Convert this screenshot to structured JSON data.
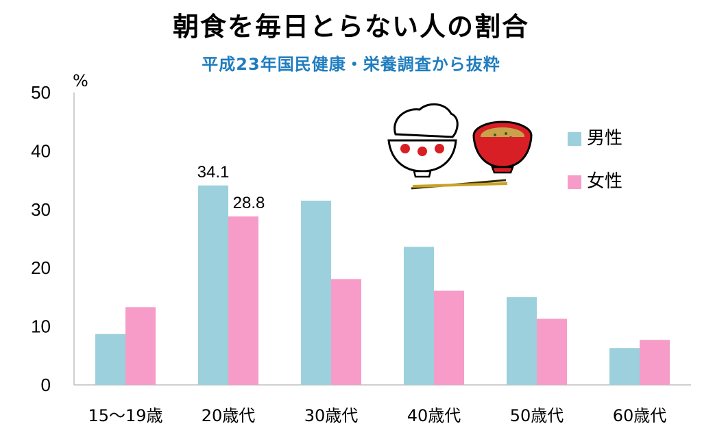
{
  "colors": {
    "male": "#9BD0DC",
    "female": "#F79CC8",
    "title": "#000000",
    "subtitle": "#1F7DBF",
    "axis": "#BFBFBF"
  },
  "chart_data": {
    "type": "bar",
    "title": "朝食を毎日とらない人の割合",
    "subtitle": "平成23年国民健康・栄養調査から抜粋",
    "ylabel": "%",
    "ylim": [
      0,
      50
    ],
    "yticks": [
      0,
      10,
      20,
      30,
      40,
      50
    ],
    "grid": false,
    "legend_position": "top-right",
    "categories": [
      "15〜19歳",
      "20歳代",
      "30歳代",
      "40歳代",
      "50歳代",
      "60歳代"
    ],
    "series": [
      {
        "name": "男性",
        "color": "#9BD0DC",
        "values": [
          8.7,
          34.1,
          31.5,
          23.6,
          15.0,
          6.3
        ]
      },
      {
        "name": "女性",
        "color": "#F79CC8",
        "values": [
          13.3,
          28.8,
          18.1,
          16.1,
          11.3,
          7.7
        ]
      }
    ],
    "data_labels": [
      {
        "series": 0,
        "category": 1,
        "text": "34.1"
      },
      {
        "series": 1,
        "category": 1,
        "text": "28.8"
      }
    ],
    "illustration": [
      "rice-bowl-icon",
      "miso-soup-bowl-icon",
      "chopsticks-icon"
    ]
  }
}
